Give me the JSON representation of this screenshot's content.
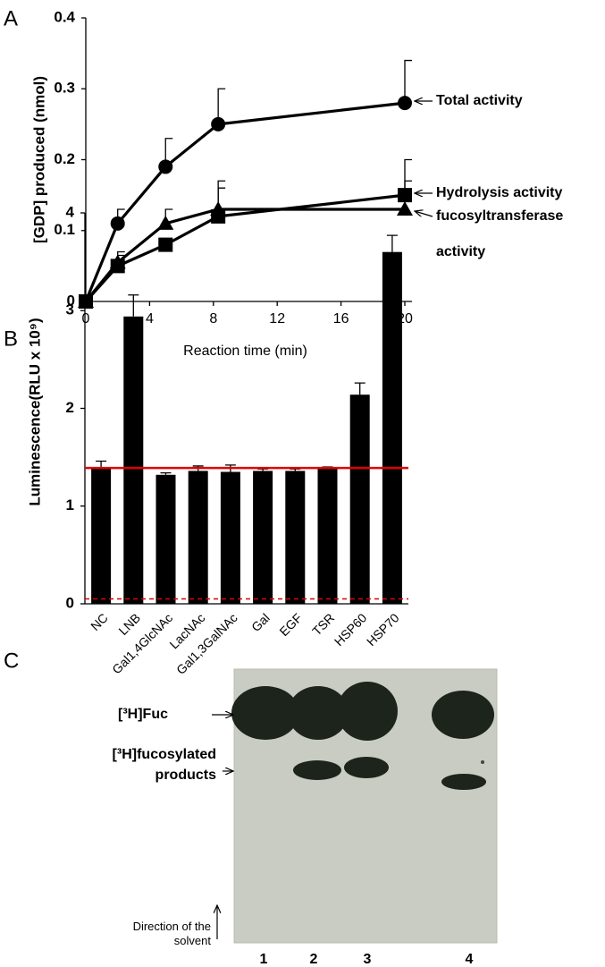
{
  "chart_data": [
    {
      "type": "line",
      "panel": "A",
      "xlabel": "Reaction time (min)",
      "ylabel": "[GDP] produced (nmol)",
      "x": [
        0,
        2,
        5,
        8.3,
        20
      ],
      "xlim": [
        0,
        20
      ],
      "xticks": [
        0,
        4,
        8,
        12,
        16,
        20
      ],
      "ylim": [
        0,
        0.4
      ],
      "yticks": [
        0,
        0.1,
        0.2,
        0.3,
        0.4
      ],
      "series": [
        {
          "name": "Total activity",
          "color": "#000000",
          "marker": "circle",
          "values": [
            0,
            0.11,
            0.19,
            0.25,
            0.28
          ],
          "errors": [
            null,
            0.02,
            0.04,
            0.05,
            0.06
          ]
        },
        {
          "name": "Hydrolysis activity",
          "color": "#000000",
          "marker": "square",
          "values": [
            0,
            0.05,
            0.08,
            0.12,
            0.15
          ],
          "errors": [
            null,
            0.015,
            null,
            0.04,
            0.05
          ]
        },
        {
          "name": "fucosyltransferase activity",
          "color": "#000000",
          "marker": "triangle",
          "values": [
            0,
            0.055,
            0.11,
            0.13,
            0.13
          ],
          "errors": [
            null,
            0.015,
            0.02,
            0.04,
            0.04
          ]
        }
      ]
    },
    {
      "type": "bar",
      "panel": "B",
      "ylabel": "Luminescence(RLU x 10⁹)",
      "categories": [
        "NC",
        "LNB",
        "Gal1,4GlcNAc",
        "LacNAc",
        "Gal1,3GalNAc",
        "Gal",
        "EGF",
        "TSR",
        "HSP60",
        "HSP70"
      ],
      "values": [
        1.39,
        2.94,
        1.32,
        1.36,
        1.35,
        1.36,
        1.36,
        1.39,
        2.14,
        3.6
      ],
      "errors": [
        0.07,
        0.22,
        0.02,
        0.05,
        0.07,
        0.02,
        0.02,
        0.01,
        0.12,
        0.17
      ],
      "color": "#000000",
      "ylim": [
        0,
        4
      ],
      "yticks": [
        0,
        1,
        2,
        3,
        4
      ],
      "hlines": [
        {
          "value": 1.39,
          "color": "#e00000",
          "style": "solid"
        },
        {
          "value": 0.05,
          "color": "#e00000",
          "style": "dashed"
        }
      ]
    }
  ],
  "gel": {
    "panel": "C",
    "bands": [
      "[³H]Fuc",
      "[³H]fucosylated products"
    ],
    "direction_label": "Direction of the solvent",
    "lanes": [
      "1",
      "2",
      "3",
      "4"
    ]
  }
}
